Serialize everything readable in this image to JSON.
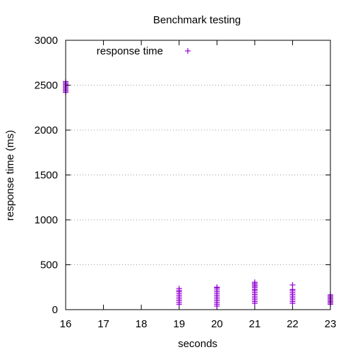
{
  "chart_data": {
    "type": "scatter",
    "title": "Benchmark testing",
    "xlabel": "seconds",
    "ylabel": "response time (ms)",
    "xlim": [
      16,
      23
    ],
    "ylim": [
      0,
      3000
    ],
    "x_ticks": [
      "16",
      "17",
      "18",
      "19",
      "20",
      "21",
      "22",
      "23"
    ],
    "y_ticks": [
      "0",
      "500",
      "1000",
      "1500",
      "2000",
      "2500",
      "3000"
    ],
    "grid": "horizontal-dotted",
    "legend_position": "top-left",
    "marker": "plus",
    "series": [
      {
        "name": "response time",
        "color": "#9400d3",
        "points": [
          [
            16.0,
            2420
          ],
          [
            16.0,
            2435
          ],
          [
            16.0,
            2450
          ],
          [
            16.0,
            2465
          ],
          [
            16.0,
            2480
          ],
          [
            16.0,
            2495
          ],
          [
            16.0,
            2510
          ],
          [
            16.0,
            2525
          ],
          [
            16.0,
            2540
          ],
          [
            19.0,
            60
          ],
          [
            19.0,
            80
          ],
          [
            19.0,
            100
          ],
          [
            19.0,
            120
          ],
          [
            19.0,
            140
          ],
          [
            19.0,
            160
          ],
          [
            19.0,
            180
          ],
          [
            19.0,
            200
          ],
          [
            19.0,
            215
          ],
          [
            19.0,
            235
          ],
          [
            20.0,
            40
          ],
          [
            20.0,
            60
          ],
          [
            20.0,
            80
          ],
          [
            20.0,
            100
          ],
          [
            20.0,
            120
          ],
          [
            20.0,
            140
          ],
          [
            20.0,
            160
          ],
          [
            20.0,
            180
          ],
          [
            20.0,
            200
          ],
          [
            20.0,
            220
          ],
          [
            20.0,
            240
          ],
          [
            20.0,
            250
          ],
          [
            21.0,
            70
          ],
          [
            21.0,
            90
          ],
          [
            21.0,
            110
          ],
          [
            21.0,
            130
          ],
          [
            21.0,
            150
          ],
          [
            21.0,
            170
          ],
          [
            21.0,
            190
          ],
          [
            21.0,
            210
          ],
          [
            21.0,
            225
          ],
          [
            21.0,
            245
          ],
          [
            21.0,
            260
          ],
          [
            21.0,
            275
          ],
          [
            21.0,
            290
          ],
          [
            21.0,
            305
          ],
          [
            22.0,
            70
          ],
          [
            22.0,
            90
          ],
          [
            22.0,
            110
          ],
          [
            22.0,
            130
          ],
          [
            22.0,
            150
          ],
          [
            22.0,
            170
          ],
          [
            22.0,
            190
          ],
          [
            22.0,
            210
          ],
          [
            22.0,
            225
          ],
          [
            22.0,
            275
          ],
          [
            23.0,
            60
          ],
          [
            23.0,
            75
          ],
          [
            23.0,
            90
          ],
          [
            23.0,
            105
          ],
          [
            23.0,
            120
          ],
          [
            23.0,
            135
          ],
          [
            23.0,
            150
          ],
          [
            23.0,
            165
          ]
        ]
      }
    ]
  }
}
